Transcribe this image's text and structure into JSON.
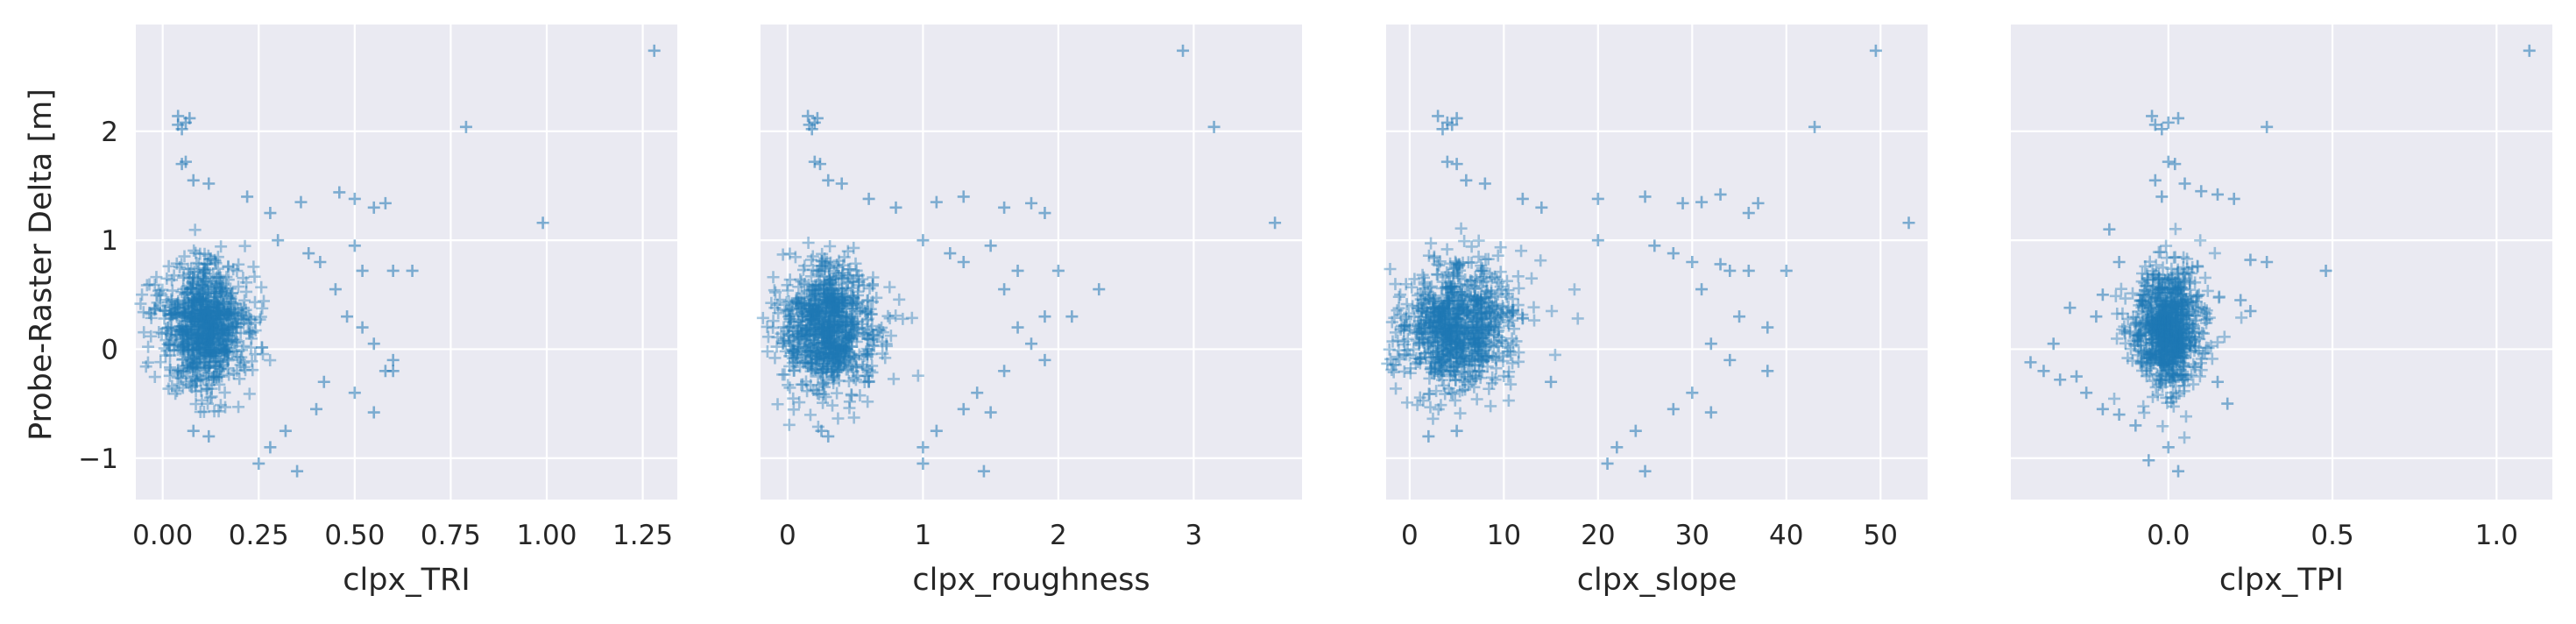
{
  "chart_data": [
    {
      "type": "scatter",
      "xlabel": "clpx_TRI",
      "ylabel": "Probe-Raster Delta [m]",
      "xlim": [
        -0.07,
        1.34
      ],
      "ylim": [
        -1.38,
        2.98
      ],
      "xticks": [
        0.0,
        0.25,
        0.5,
        0.75,
        1.0,
        1.25
      ],
      "xtick_labels": [
        "0.00",
        "0.25",
        "0.50",
        "0.75",
        "1.00",
        "1.25"
      ],
      "yticks": [
        -1,
        0,
        1,
        2
      ],
      "ytick_labels": [
        "−1",
        "0",
        "1",
        "2"
      ],
      "marker": "+",
      "color": "#1f77b4",
      "grid": true,
      "cloud": {
        "x_center": 0.11,
        "x_spread": 0.06,
        "y_center": 0.2,
        "y_spread": 0.28
      },
      "points": [
        [
          0.04,
          2.14
        ],
        [
          0.06,
          2.08
        ],
        [
          0.05,
          2.02
        ],
        [
          0.07,
          2.12
        ],
        [
          0.04,
          2.06
        ],
        [
          0.06,
          1.72
        ],
        [
          0.05,
          1.7
        ],
        [
          0.08,
          1.55
        ],
        [
          0.12,
          1.52
        ],
        [
          0.22,
          1.4
        ],
        [
          0.28,
          1.25
        ],
        [
          0.36,
          1.35
        ],
        [
          0.46,
          1.44
        ],
        [
          0.5,
          1.38
        ],
        [
          0.55,
          1.3
        ],
        [
          0.58,
          1.34
        ],
        [
          0.3,
          1.0
        ],
        [
          0.38,
          0.88
        ],
        [
          0.41,
          0.8
        ],
        [
          0.5,
          0.95
        ],
        [
          0.52,
          0.72
        ],
        [
          0.6,
          0.72
        ],
        [
          0.65,
          0.72
        ],
        [
          0.45,
          0.55
        ],
        [
          0.48,
          0.3
        ],
        [
          0.52,
          0.2
        ],
        [
          0.55,
          0.05
        ],
        [
          0.6,
          -0.1
        ],
        [
          0.6,
          -0.2
        ],
        [
          0.5,
          -0.4
        ],
        [
          0.4,
          -0.55
        ],
        [
          0.32,
          -0.75
        ],
        [
          0.28,
          -0.9
        ],
        [
          0.25,
          -1.05
        ],
        [
          0.35,
          -1.12
        ],
        [
          0.12,
          -0.8
        ],
        [
          0.08,
          -0.75
        ],
        [
          0.42,
          -0.3
        ],
        [
          0.55,
          -0.58
        ],
        [
          0.58,
          -0.2
        ],
        [
          0.79,
          2.04
        ],
        [
          0.99,
          1.16
        ],
        [
          1.28,
          2.74
        ]
      ]
    },
    {
      "type": "scatter",
      "xlabel": "clpx_roughness",
      "xlim": [
        -0.2,
        3.8
      ],
      "ylim": [
        -1.38,
        2.98
      ],
      "xticks": [
        0,
        1,
        2,
        3
      ],
      "xtick_labels": [
        "0",
        "1",
        "2",
        "3"
      ],
      "marker": "+",
      "color": "#1f77b4",
      "grid": true,
      "cloud": {
        "x_center": 0.3,
        "x_spread": 0.18,
        "y_center": 0.2,
        "y_spread": 0.28
      },
      "points": [
        [
          0.15,
          2.14
        ],
        [
          0.2,
          2.08
        ],
        [
          0.18,
          2.02
        ],
        [
          0.22,
          2.12
        ],
        [
          0.16,
          2.06
        ],
        [
          0.2,
          1.72
        ],
        [
          0.24,
          1.7
        ],
        [
          0.3,
          1.55
        ],
        [
          0.4,
          1.52
        ],
        [
          0.6,
          1.38
        ],
        [
          0.8,
          1.3
        ],
        [
          1.1,
          1.35
        ],
        [
          1.3,
          1.4
        ],
        [
          1.6,
          1.3
        ],
        [
          1.8,
          1.34
        ],
        [
          1.9,
          1.25
        ],
        [
          1.0,
          1.0
        ],
        [
          1.2,
          0.88
        ],
        [
          1.3,
          0.8
        ],
        [
          1.5,
          0.95
        ],
        [
          1.7,
          0.72
        ],
        [
          2.0,
          0.72
        ],
        [
          1.6,
          0.55
        ],
        [
          2.3,
          0.55
        ],
        [
          1.9,
          0.3
        ],
        [
          1.7,
          0.2
        ],
        [
          2.1,
          0.3
        ],
        [
          1.8,
          0.05
        ],
        [
          1.9,
          -0.1
        ],
        [
          1.6,
          -0.2
        ],
        [
          1.4,
          -0.4
        ],
        [
          1.3,
          -0.55
        ],
        [
          1.1,
          -0.75
        ],
        [
          1.0,
          -0.9
        ],
        [
          1.0,
          -1.05
        ],
        [
          1.45,
          -1.12
        ],
        [
          0.3,
          -0.8
        ],
        [
          0.25,
          -0.75
        ],
        [
          0.6,
          -0.3
        ],
        [
          1.5,
          -0.58
        ],
        [
          2.92,
          2.74
        ],
        [
          3.15,
          2.04
        ],
        [
          3.6,
          1.16
        ]
      ]
    },
    {
      "type": "scatter",
      "xlabel": "clpx_slope",
      "xlim": [
        -2.5,
        55
      ],
      "ylim": [
        -1.38,
        2.98
      ],
      "xticks": [
        0,
        10,
        20,
        30,
        40,
        50
      ],
      "xtick_labels": [
        "0",
        "10",
        "20",
        "30",
        "40",
        "50"
      ],
      "marker": "+",
      "color": "#1f77b4",
      "grid": true,
      "cloud": {
        "x_center": 5,
        "x_spread": 3,
        "y_center": 0.2,
        "y_spread": 0.28
      },
      "points": [
        [
          3,
          2.14
        ],
        [
          4,
          2.08
        ],
        [
          3.5,
          2.02
        ],
        [
          5,
          2.12
        ],
        [
          4.5,
          2.06
        ],
        [
          4,
          1.72
        ],
        [
          5,
          1.7
        ],
        [
          6,
          1.55
        ],
        [
          8,
          1.52
        ],
        [
          12,
          1.38
        ],
        [
          14,
          1.3
        ],
        [
          20,
          1.38
        ],
        [
          25,
          1.4
        ],
        [
          29,
          1.34
        ],
        [
          31,
          1.35
        ],
        [
          33,
          1.42
        ],
        [
          37,
          1.34
        ],
        [
          36,
          1.25
        ],
        [
          20,
          1.0
        ],
        [
          26,
          0.95
        ],
        [
          28,
          0.88
        ],
        [
          30,
          0.8
        ],
        [
          33,
          0.78
        ],
        [
          34,
          0.72
        ],
        [
          36,
          0.72
        ],
        [
          40,
          0.72
        ],
        [
          31,
          0.55
        ],
        [
          35,
          0.3
        ],
        [
          38,
          0.2
        ],
        [
          32,
          0.05
        ],
        [
          34,
          -0.1
        ],
        [
          38,
          -0.2
        ],
        [
          30,
          -0.4
        ],
        [
          28,
          -0.55
        ],
        [
          24,
          -0.75
        ],
        [
          22,
          -0.9
        ],
        [
          21,
          -1.05
        ],
        [
          25,
          -1.12
        ],
        [
          2,
          -0.8
        ],
        [
          5,
          -0.75
        ],
        [
          15,
          -0.3
        ],
        [
          32,
          -0.58
        ],
        [
          43,
          2.04
        ],
        [
          49.5,
          2.74
        ],
        [
          53,
          1.16
        ]
      ]
    },
    {
      "type": "scatter",
      "xlabel": "clpx_TPI",
      "xlim": [
        -0.48,
        1.17
      ],
      "ylim": [
        -1.38,
        2.98
      ],
      "xticks": [
        0.0,
        0.5,
        1.0
      ],
      "xtick_labels": [
        "0.0",
        "0.5",
        "1.0"
      ],
      "marker": "+",
      "color": "#1f77b4",
      "grid": true,
      "cloud": {
        "x_center": 0.0,
        "x_spread": 0.05,
        "y_center": 0.2,
        "y_spread": 0.28
      },
      "points": [
        [
          -0.05,
          2.14
        ],
        [
          0.0,
          2.08
        ],
        [
          -0.02,
          2.02
        ],
        [
          0.03,
          2.12
        ],
        [
          -0.04,
          2.06
        ],
        [
          0.0,
          1.72
        ],
        [
          0.02,
          1.7
        ],
        [
          -0.04,
          1.55
        ],
        [
          0.05,
          1.52
        ],
        [
          -0.02,
          1.4
        ],
        [
          0.1,
          1.45
        ],
        [
          0.15,
          1.42
        ],
        [
          0.2,
          1.38
        ],
        [
          -0.18,
          1.1
        ],
        [
          -0.15,
          0.8
        ],
        [
          0.25,
          0.82
        ],
        [
          0.3,
          0.8
        ],
        [
          -0.2,
          0.5
        ],
        [
          -0.3,
          0.38
        ],
        [
          -0.22,
          0.3
        ],
        [
          0.22,
          0.45
        ],
        [
          0.25,
          0.35
        ],
        [
          -0.35,
          0.05
        ],
        [
          -0.42,
          -0.12
        ],
        [
          -0.38,
          -0.2
        ],
        [
          -0.33,
          -0.28
        ],
        [
          -0.28,
          -0.25
        ],
        [
          -0.25,
          -0.4
        ],
        [
          -0.2,
          -0.55
        ],
        [
          -0.15,
          -0.6
        ],
        [
          -0.1,
          -0.7
        ],
        [
          0.0,
          -0.9
        ],
        [
          -0.06,
          -1.02
        ],
        [
          0.03,
          -1.12
        ],
        [
          0.15,
          -0.3
        ],
        [
          0.18,
          -0.5
        ],
        [
          0.3,
          2.04
        ],
        [
          0.48,
          0.72
        ],
        [
          1.1,
          2.74
        ]
      ]
    }
  ]
}
